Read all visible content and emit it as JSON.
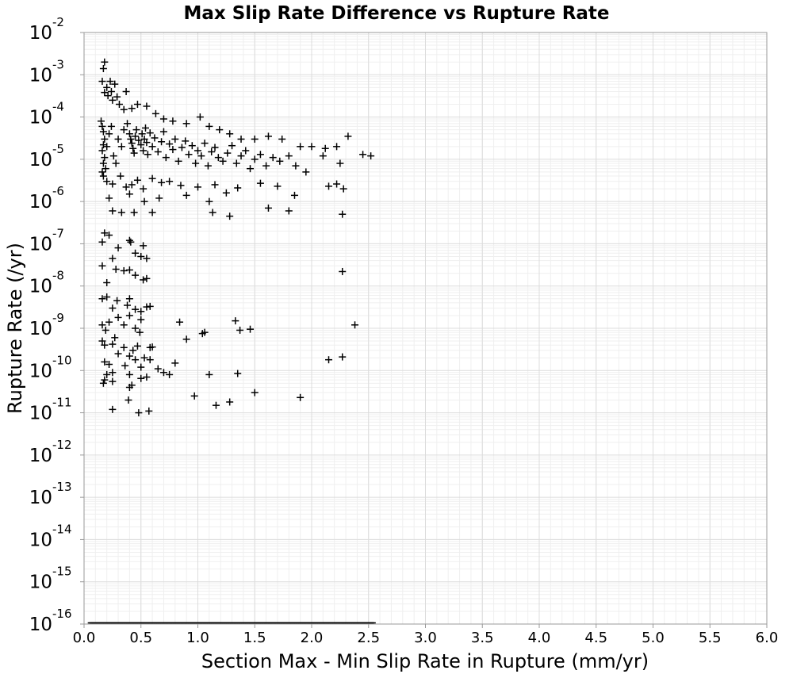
{
  "chart_data": {
    "type": "scatter",
    "title": "Max Slip Rate Difference vs Rupture Rate",
    "xlabel": "Section Max - Min Slip Rate in Rupture (mm/yr)",
    "ylabel": "Rupture Rate (/yr)",
    "xlim": [
      0.0,
      6.0
    ],
    "ylim": [
      1e-16,
      0.01
    ],
    "yscale": "log",
    "grid": true,
    "marker": "plus",
    "x_ticks": [
      "0.0",
      "0.5",
      "1.0",
      "1.5",
      "2.0",
      "2.5",
      "3.0",
      "3.5",
      "4.0",
      "4.5",
      "5.0",
      "5.5",
      "6.0"
    ],
    "y_ticks": [
      {
        "base": "10",
        "exp": "-2"
      },
      {
        "base": "10",
        "exp": "-3"
      },
      {
        "base": "10",
        "exp": "-4"
      },
      {
        "base": "10",
        "exp": "-5"
      },
      {
        "base": "10",
        "exp": "-6"
      },
      {
        "base": "10",
        "exp": "-7"
      },
      {
        "base": "10",
        "exp": "-8"
      },
      {
        "base": "10",
        "exp": "-9"
      },
      {
        "base": "10",
        "exp": "-10"
      },
      {
        "base": "10",
        "exp": "-11"
      },
      {
        "base": "10",
        "exp": "-12"
      },
      {
        "base": "10",
        "exp": "-13"
      },
      {
        "base": "10",
        "exp": "-14"
      },
      {
        "base": "10",
        "exp": "-15"
      },
      {
        "base": "10",
        "exp": "-16"
      }
    ],
    "points": [
      [
        0.17,
        0.0014
      ],
      [
        0.18,
        0.002
      ],
      [
        0.16,
        0.0007
      ],
      [
        0.23,
        0.0007
      ],
      [
        0.27,
        0.0006
      ],
      [
        0.2,
        0.0005
      ],
      [
        0.24,
        0.0004
      ],
      [
        0.18,
        0.00038
      ],
      [
        0.21,
        0.00032
      ],
      [
        0.29,
        0.0003
      ],
      [
        0.37,
        0.0004
      ],
      [
        0.25,
        0.00025
      ],
      [
        0.31,
        0.0002
      ],
      [
        0.35,
        0.00015
      ],
      [
        0.42,
        0.00016
      ],
      [
        0.47,
        0.0002
      ],
      [
        0.55,
        0.00018
      ],
      [
        0.63,
        0.00012
      ],
      [
        0.7,
        9e-05
      ],
      [
        0.78,
        8e-05
      ],
      [
        0.9,
        7e-05
      ],
      [
        1.02,
        0.0001
      ],
      [
        1.1,
        6e-05
      ],
      [
        1.19,
        5e-05
      ],
      [
        1.28,
        4e-05
      ],
      [
        1.38,
        3e-05
      ],
      [
        1.5,
        3e-05
      ],
      [
        1.62,
        3.5e-05
      ],
      [
        1.74,
        3e-05
      ],
      [
        1.9,
        2e-05
      ],
      [
        2.0,
        2e-05
      ],
      [
        2.12,
        1.8e-05
      ],
      [
        2.22,
        2e-05
      ],
      [
        2.32,
        3.5e-05
      ],
      [
        2.45,
        1.3e-05
      ],
      [
        2.52,
        1.2e-05
      ],
      [
        0.15,
        8e-05
      ],
      [
        0.16,
        6e-05
      ],
      [
        0.17,
        4.5e-05
      ],
      [
        0.18,
        3e-05
      ],
      [
        0.17,
        2.2e-05
      ],
      [
        0.16,
        1.6e-05
      ],
      [
        0.18,
        1.1e-05
      ],
      [
        0.17,
        8e-06
      ],
      [
        0.19,
        6e-06
      ],
      [
        0.16,
        5e-06
      ],
      [
        0.2,
        2e-05
      ],
      [
        0.22,
        4e-05
      ],
      [
        0.24,
        6e-05
      ],
      [
        0.26,
        1.2e-05
      ],
      [
        0.28,
        8e-06
      ],
      [
        0.3,
        3e-05
      ],
      [
        0.33,
        2e-05
      ],
      [
        0.35,
        5e-05
      ],
      [
        0.38,
        7e-05
      ],
      [
        0.4,
        4e-05
      ],
      [
        0.41,
        3e-05
      ],
      [
        0.42,
        2.4e-05
      ],
      [
        0.43,
        1.8e-05
      ],
      [
        0.44,
        1.4e-05
      ],
      [
        0.45,
        3.5e-05
      ],
      [
        0.46,
        5e-05
      ],
      [
        0.48,
        2.8e-05
      ],
      [
        0.5,
        2.2e-05
      ],
      [
        0.51,
        4e-05
      ],
      [
        0.52,
        1.6e-05
      ],
      [
        0.53,
        3e-05
      ],
      [
        0.54,
        5.5e-05
      ],
      [
        0.55,
        2.5e-05
      ],
      [
        0.56,
        1.3e-05
      ],
      [
        0.58,
        4.2e-05
      ],
      [
        0.6,
        2e-05
      ],
      [
        0.62,
        3.2e-05
      ],
      [
        0.65,
        1.5e-05
      ],
      [
        0.68,
        2.6e-05
      ],
      [
        0.7,
        4.5e-05
      ],
      [
        0.72,
        1.1e-05
      ],
      [
        0.75,
        2.3e-05
      ],
      [
        0.78,
        1.7e-05
      ],
      [
        0.8,
        3e-05
      ],
      [
        0.83,
        9e-06
      ],
      [
        0.86,
        1.9e-05
      ],
      [
        0.89,
        2.7e-05
      ],
      [
        0.92,
        1.3e-05
      ],
      [
        0.95,
        2.1e-05
      ],
      [
        0.98,
        8e-06
      ],
      [
        1.0,
        1.6e-05
      ],
      [
        1.03,
        1.2e-05
      ],
      [
        1.06,
        2.4e-05
      ],
      [
        1.09,
        7e-06
      ],
      [
        1.12,
        1.5e-05
      ],
      [
        1.15,
        1.9e-05
      ],
      [
        1.18,
        1.1e-05
      ],
      [
        1.22,
        9e-06
      ],
      [
        1.26,
        1.4e-05
      ],
      [
        1.3,
        2.1e-05
      ],
      [
        1.34,
        8e-06
      ],
      [
        1.38,
        1.2e-05
      ],
      [
        1.42,
        1.6e-05
      ],
      [
        1.46,
        6e-06
      ],
      [
        1.5,
        1e-05
      ],
      [
        1.55,
        1.3e-05
      ],
      [
        1.6,
        7e-06
      ],
      [
        1.66,
        1.1e-05
      ],
      [
        1.72,
        9e-06
      ],
      [
        1.8,
        1.2e-05
      ],
      [
        1.86,
        7e-06
      ],
      [
        1.95,
        5e-06
      ],
      [
        2.1,
        1.2e-05
      ],
      [
        2.25,
        8e-06
      ],
      [
        0.17,
        4e-06
      ],
      [
        0.2,
        3e-06
      ],
      [
        0.25,
        2.6e-06
      ],
      [
        0.32,
        4e-06
      ],
      [
        0.37,
        2.2e-06
      ],
      [
        0.42,
        2.5e-06
      ],
      [
        0.47,
        3.2e-06
      ],
      [
        0.52,
        2e-06
      ],
      [
        0.6,
        3.5e-06
      ],
      [
        0.68,
        2.8e-06
      ],
      [
        0.75,
        3e-06
      ],
      [
        0.85,
        2.4e-06
      ],
      [
        0.9,
        1.4e-06
      ],
      [
        1.0,
        2.2e-06
      ],
      [
        1.15,
        2.5e-06
      ],
      [
        1.25,
        1.6e-06
      ],
      [
        1.35,
        2.1e-06
      ],
      [
        1.55,
        2.7e-06
      ],
      [
        1.7,
        2.3e-06
      ],
      [
        1.85,
        1.4e-06
      ],
      [
        2.15,
        2.3e-06
      ],
      [
        2.22,
        2.6e-06
      ],
      [
        2.28,
        2e-06
      ],
      [
        0.22,
        1.2e-06
      ],
      [
        0.4,
        1.5e-06
      ],
      [
        0.53,
        1e-06
      ],
      [
        0.66,
        1.2e-06
      ],
      [
        1.1,
        1e-06
      ],
      [
        1.62,
        7e-07
      ],
      [
        1.8,
        6e-07
      ],
      [
        0.25,
        6e-07
      ],
      [
        0.33,
        5.5e-07
      ],
      [
        0.44,
        5.5e-07
      ],
      [
        0.6,
        5.5e-07
      ],
      [
        1.13,
        5.5e-07
      ],
      [
        1.28,
        4.5e-07
      ],
      [
        2.27,
        5e-07
      ],
      [
        0.18,
        1.8e-07
      ],
      [
        0.22,
        1.6e-07
      ],
      [
        0.16,
        1.1e-07
      ],
      [
        0.4,
        1.2e-07
      ],
      [
        0.41,
        1.1e-07
      ],
      [
        0.52,
        9e-08
      ],
      [
        0.3,
        8e-08
      ],
      [
        0.45,
        6e-08
      ],
      [
        0.5,
        5e-08
      ],
      [
        0.55,
        4.5e-08
      ],
      [
        0.25,
        4.5e-08
      ],
      [
        0.16,
        3e-08
      ],
      [
        0.28,
        2.5e-08
      ],
      [
        0.35,
        2.3e-08
      ],
      [
        0.4,
        2.4e-08
      ],
      [
        0.45,
        1.8e-08
      ],
      [
        0.52,
        1.4e-08
      ],
      [
        0.55,
        1.5e-08
      ],
      [
        0.2,
        1.2e-08
      ],
      [
        2.27,
        2.2e-08
      ],
      [
        0.16,
        5e-09
      ],
      [
        0.2,
        5.5e-09
      ],
      [
        0.29,
        4.5e-09
      ],
      [
        0.4,
        5e-09
      ],
      [
        0.38,
        3.5e-09
      ],
      [
        0.25,
        3e-09
      ],
      [
        0.45,
        2.8e-09
      ],
      [
        0.5,
        2.5e-09
      ],
      [
        0.55,
        3.2e-09
      ],
      [
        0.58,
        3.3e-09
      ],
      [
        0.3,
        1.8e-09
      ],
      [
        0.4,
        2e-09
      ],
      [
        0.5,
        1.6e-09
      ],
      [
        0.16,
        1.2e-09
      ],
      [
        0.19,
        9e-10
      ],
      [
        0.22,
        1.4e-09
      ],
      [
        0.27,
        6e-10
      ],
      [
        0.35,
        1.2e-09
      ],
      [
        0.45,
        1e-09
      ],
      [
        0.49,
        8e-10
      ],
      [
        0.84,
        1.4e-09
      ],
      [
        0.9,
        5.5e-10
      ],
      [
        1.04,
        7.5e-10
      ],
      [
        1.06,
        8e-10
      ],
      [
        1.33,
        1.5e-09
      ],
      [
        1.37,
        9e-10
      ],
      [
        1.46,
        9.5e-10
      ],
      [
        2.38,
        1.2e-09
      ],
      [
        0.16,
        5e-10
      ],
      [
        0.18,
        4e-10
      ],
      [
        0.25,
        4.2e-10
      ],
      [
        0.35,
        3.5e-10
      ],
      [
        0.43,
        3e-10
      ],
      [
        0.47,
        3.8e-10
      ],
      [
        0.58,
        3.5e-10
      ],
      [
        0.6,
        3.6e-10
      ],
      [
        0.3,
        2.5e-10
      ],
      [
        0.4,
        2.2e-10
      ],
      [
        0.53,
        2e-10
      ],
      [
        0.45,
        1.8e-10
      ],
      [
        0.58,
        1.8e-10
      ],
      [
        0.18,
        1.6e-10
      ],
      [
        0.22,
        1.4e-10
      ],
      [
        0.36,
        1.3e-10
      ],
      [
        0.5,
        1.2e-10
      ],
      [
        0.65,
        1.1e-10
      ],
      [
        0.7,
        9e-11
      ],
      [
        0.75,
        8e-11
      ],
      [
        0.8,
        1.5e-10
      ],
      [
        0.2,
        8e-11
      ],
      [
        0.25,
        9e-11
      ],
      [
        0.4,
        8e-11
      ],
      [
        0.55,
        7e-11
      ],
      [
        1.1,
        8e-11
      ],
      [
        1.35,
        8.5e-11
      ],
      [
        2.15,
        1.8e-10
      ],
      [
        2.27,
        2.1e-10
      ],
      [
        0.17,
        5e-11
      ],
      [
        0.18,
        6e-11
      ],
      [
        0.25,
        5.5e-11
      ],
      [
        0.4,
        4e-11
      ],
      [
        0.42,
        4.5e-11
      ],
      [
        0.5,
        6.5e-11
      ],
      [
        0.39,
        2e-11
      ],
      [
        0.97,
        2.5e-11
      ],
      [
        1.16,
        1.5e-11
      ],
      [
        1.28,
        1.8e-11
      ],
      [
        1.5,
        3e-11
      ],
      [
        1.9,
        2.3e-11
      ],
      [
        0.25,
        1.2e-11
      ],
      [
        0.48,
        1e-11
      ],
      [
        0.57,
        1.1e-11
      ]
    ],
    "floor_band": {
      "x_start": 0.05,
      "x_end": 2.55,
      "y": 1e-16
    }
  }
}
